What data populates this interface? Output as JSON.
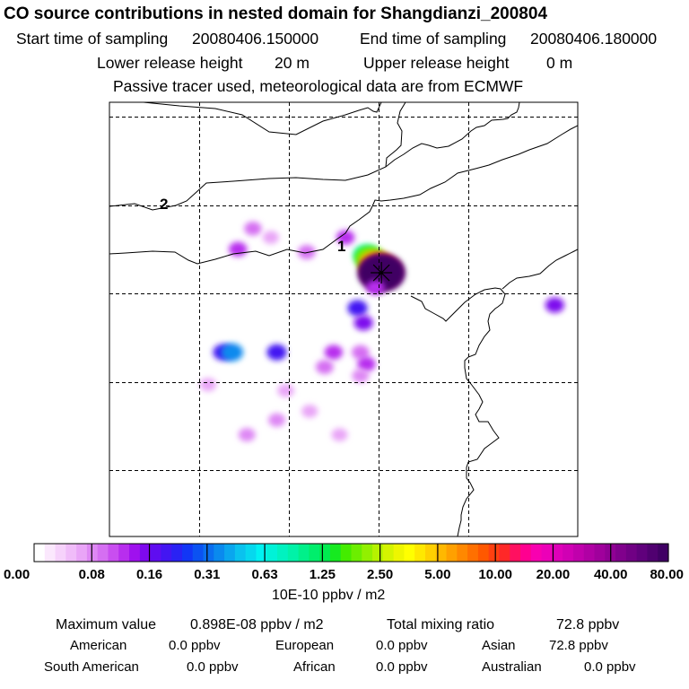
{
  "header": {
    "title": "CO  source contributions in nested domain for Shangdianzi_200804",
    "start_label": "Start time of sampling",
    "start_value": "20080406.150000",
    "end_label": "End time of sampling",
    "end_value": "20080406.180000",
    "lower_label": "Lower release height",
    "lower_value": "20 m",
    "upper_label": "Upper release height",
    "upper_value": "0 m",
    "note": "Passive tracer used, meteorological data are from ECMWF"
  },
  "chart_data": {
    "type": "heatmap",
    "title": "CO  source contributions in nested domain for Shangdianzi_200804",
    "region_labels": [
      "2",
      "1"
    ],
    "colorbar": {
      "unit": "10E-10 ppbv / m2",
      "tick_labels": [
        "0.00",
        "0.08",
        "0.16",
        "0.31",
        "0.63",
        "1.25",
        "2.50",
        "5.00",
        "10.00",
        "20.00",
        "40.00",
        "80.00"
      ],
      "colors": [
        "#ffffff",
        "#fbe8fd",
        "#f6d2fb",
        "#f0bcf9",
        "#e9a5f7",
        "#de88f4",
        "#d56ff2",
        "#c94ef0",
        "#b82eee",
        "#9f11ee",
        "#7e09ee",
        "#5f0df0",
        "#4316f2",
        "#2a22f4",
        "#1236f6",
        "#0b52f2",
        "#0a6ef0",
        "#0a8aee",
        "#0aa6ee",
        "#0ac2ee",
        "#06d8ee",
        "#00f2f2",
        "#00f2d8",
        "#00f2c0",
        "#00f2a8",
        "#00f08a",
        "#00ee6c",
        "#00ec50",
        "#16ea20",
        "#44ec00",
        "#6cee00",
        "#92f000",
        "#b6f200",
        "#d4f400",
        "#eef600",
        "#ffff00",
        "#ffe800",
        "#ffd000",
        "#ffb800",
        "#ffa000",
        "#ff8800",
        "#ff7000",
        "#ff5800",
        "#ff4010",
        "#ff2828",
        "#ff1060",
        "#ff0090",
        "#f800b0",
        "#ec00b8",
        "#de00b8",
        "#d000b4",
        "#c000ac",
        "#b000a4",
        "#a0009c",
        "#900094",
        "#80008c",
        "#700084",
        "#60007c",
        "#500070",
        "#400064"
      ]
    },
    "plumes": [
      {
        "lon": 115.3,
        "lat": 41.5,
        "value": 0.12
      },
      {
        "lon": 115.8,
        "lat": 42.2,
        "value": 0.09
      },
      {
        "lon": 116.4,
        "lat": 41.9,
        "value": 0.06
      },
      {
        "lon": 117.6,
        "lat": 41.4,
        "value": 0.1
      },
      {
        "lon": 118.9,
        "lat": 41.9,
        "value": 0.12
      },
      {
        "lon": 119.6,
        "lat": 41.3,
        "value": 0.9
      },
      {
        "lon": 119.7,
        "lat": 41.2,
        "value": 2.0
      },
      {
        "lon": 119.9,
        "lat": 41.0,
        "value": 5.0
      },
      {
        "lon": 120.1,
        "lat": 40.8,
        "value": 12.0
      },
      {
        "lon": 120.1,
        "lat": 40.7,
        "value": 35.0
      },
      {
        "lon": 120.1,
        "lat": 40.7,
        "value": 80.0
      },
      {
        "lon": 119.3,
        "lat": 39.5,
        "value": 0.2
      },
      {
        "lon": 119.5,
        "lat": 39.0,
        "value": 0.15
      },
      {
        "lon": 119.9,
        "lat": 40.2,
        "value": 0.12
      },
      {
        "lon": 119.4,
        "lat": 38.0,
        "value": 0.1
      },
      {
        "lon": 119.6,
        "lat": 37.6,
        "value": 0.12
      },
      {
        "lon": 119.4,
        "lat": 37.2,
        "value": 0.08
      },
      {
        "lon": 118.5,
        "lat": 38.0,
        "value": 0.12
      },
      {
        "lon": 118.2,
        "lat": 37.5,
        "value": 0.1
      },
      {
        "lon": 117.7,
        "lat": 36.0,
        "value": 0.06
      },
      {
        "lon": 116.9,
        "lat": 36.7,
        "value": 0.07
      },
      {
        "lon": 116.6,
        "lat": 35.7,
        "value": 0.08
      },
      {
        "lon": 114.8,
        "lat": 38.0,
        "value": 0.2
      },
      {
        "lon": 115.1,
        "lat": 38.0,
        "value": 0.35
      },
      {
        "lon": 116.6,
        "lat": 38.0,
        "value": 0.2
      },
      {
        "lon": 114.3,
        "lat": 36.9,
        "value": 0.07
      },
      {
        "lon": 115.6,
        "lat": 35.2,
        "value": 0.08
      },
      {
        "lon": 118.7,
        "lat": 35.2,
        "value": 0.06
      },
      {
        "lon": 125.9,
        "lat": 39.6,
        "value": 0.15
      }
    ],
    "receptor": {
      "lon": 120.1,
      "lat": 40.7
    }
  },
  "stats": {
    "max_label": "Maximum value",
    "max_value": "0.898E-08 ppbv / m2",
    "total_label": "Total mixing ratio",
    "total_value": "72.8 ppbv",
    "rows": [
      [
        {
          "name": "American",
          "value": "0.0 ppbv"
        },
        {
          "name": "European",
          "value": "0.0 ppbv"
        },
        {
          "name": "Asian",
          "value": "72.8 ppbv"
        }
      ],
      [
        {
          "name": "South American",
          "value": "0.0 ppbv"
        },
        {
          "name": "African",
          "value": "0.0 ppbv"
        },
        {
          "name": "Australian",
          "value": "0.0 ppbv"
        }
      ]
    ]
  }
}
